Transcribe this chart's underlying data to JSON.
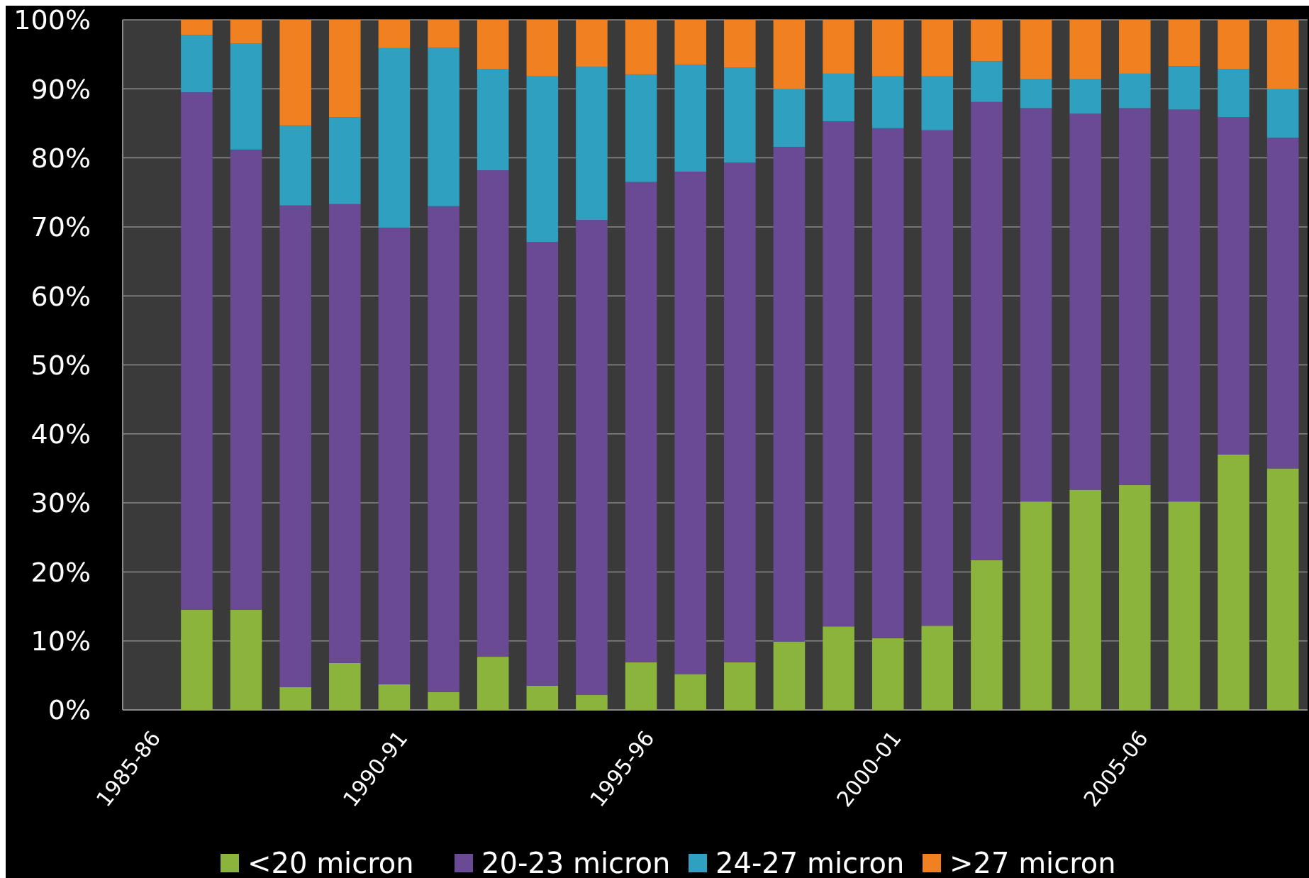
{
  "chart_data": {
    "type": "bar",
    "stacked": true,
    "categories": [
      "1985-86",
      null,
      null,
      null,
      null,
      "1990-91",
      null,
      null,
      null,
      null,
      "1995-96",
      null,
      null,
      null,
      null,
      "2000-01",
      null,
      null,
      null,
      null,
      "2005-06",
      null,
      null,
      null
    ],
    "series": [
      {
        "name": "<20 micron",
        "color": "#8ab43c",
        "values": [
          null,
          14.5,
          14.5,
          3.3,
          6.8,
          3.7,
          2.6,
          7.7,
          3.5,
          2.2,
          6.9,
          5.2,
          6.9,
          9.9,
          12.1,
          10.4,
          12.2,
          21.7,
          30.2,
          31.9,
          32.6,
          30.2,
          37,
          35
        ]
      },
      {
        "name": "20-23 micron",
        "color": "#6a4a94",
        "values": [
          null,
          75,
          66.7,
          69.8,
          66.5,
          66.2,
          70.4,
          70.5,
          64.3,
          68.8,
          69.6,
          72.8,
          72.4,
          71.7,
          73.2,
          73.9,
          71.8,
          66.4,
          57,
          54.5,
          54.6,
          56.8,
          48.9,
          47.9
        ]
      },
      {
        "name": "24-27 micron",
        "color": "#30a0c0",
        "values": [
          null,
          8.3,
          15.4,
          11.6,
          12.6,
          26,
          23,
          14.7,
          24,
          22.2,
          15.6,
          15.5,
          13.8,
          8.4,
          6.9,
          7.5,
          7.8,
          5.9,
          4.2,
          5,
          5,
          6.3,
          7,
          7.1
        ]
      },
      {
        "name": ">27 micron",
        "color": "#f08020",
        "values": [
          null,
          2.2,
          3.4,
          15.3,
          14.1,
          4.1,
          4,
          7.1,
          8.2,
          6.8,
          7.9,
          6.5,
          6.9,
          10,
          7.8,
          8.2,
          8.2,
          6,
          8.6,
          8.6,
          7.8,
          6.7,
          7.1,
          10
        ]
      }
    ],
    "ylim": [
      0,
      100
    ],
    "yticks": [
      {
        "value": 0,
        "label": "0%"
      },
      {
        "value": 10,
        "label": "10%"
      },
      {
        "value": 20,
        "label": "20%"
      },
      {
        "value": 30,
        "label": "30%"
      },
      {
        "value": 40,
        "label": "40%"
      },
      {
        "value": 50,
        "label": "50%"
      },
      {
        "value": 60,
        "label": "60%"
      },
      {
        "value": 70,
        "label": "70%"
      },
      {
        "value": 80,
        "label": "80%"
      },
      {
        "value": 90,
        "label": "90%"
      },
      {
        "value": 100,
        "label": "100%"
      }
    ],
    "grid": "y",
    "legend": "bottom"
  }
}
